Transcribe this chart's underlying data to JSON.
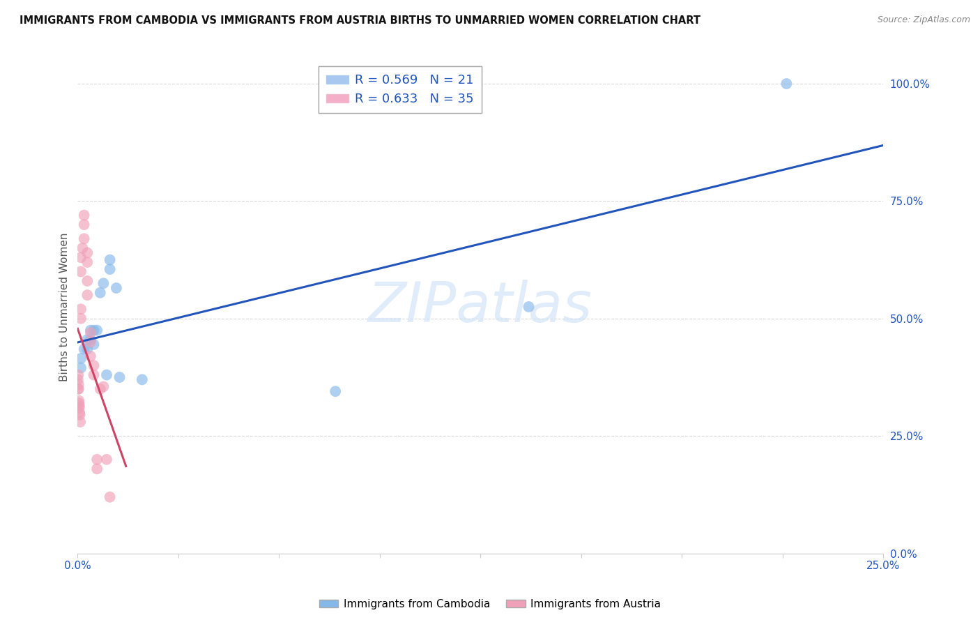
{
  "title": "IMMIGRANTS FROM CAMBODIA VS IMMIGRANTS FROM AUSTRIA BIRTHS TO UNMARRIED WOMEN CORRELATION CHART",
  "source": "Source: ZipAtlas.com",
  "ylabel": "Births to Unmarried Women",
  "legend_entries": [
    {
      "label": "R = 0.569   N = 21",
      "color": "#a8c8f0"
    },
    {
      "label": "R = 0.633   N = 35",
      "color": "#f4aec8"
    }
  ],
  "legend_label_cambodia": "Immigrants from Cambodia",
  "legend_label_austria": "Immigrants from Austria",
  "blue_color": "#85b8e8",
  "pink_color": "#f0a0b8",
  "trend_blue": "#2255bb",
  "trend_pink": "#cc4466",
  "xlim": [
    0.0,
    0.25
  ],
  "ylim": [
    0.0,
    1.05
  ],
  "ytick_vals": [
    0.0,
    0.25,
    0.5,
    0.75,
    1.0
  ],
  "ytick_labels": [
    "0.0%",
    "25.0%",
    "50.0%",
    "75.0%",
    "100.0%"
  ],
  "xtick_labels_show": [
    "0.0%",
    "25.0%"
  ],
  "cambodia_x": [
    0.001,
    0.001,
    0.002,
    0.003,
    0.003,
    0.004,
    0.004,
    0.005,
    0.005,
    0.006,
    0.007,
    0.008,
    0.009,
    0.01,
    0.01,
    0.012,
    0.013,
    0.02,
    0.08,
    0.14,
    0.22
  ],
  "cambodia_y": [
    0.395,
    0.415,
    0.435,
    0.435,
    0.455,
    0.455,
    0.475,
    0.445,
    0.475,
    0.475,
    0.555,
    0.575,
    0.38,
    0.605,
    0.625,
    0.565,
    0.375,
    0.37,
    0.345,
    0.525,
    1.0
  ],
  "austria_x": [
    0.0001,
    0.0001,
    0.0002,
    0.0003,
    0.0003,
    0.0004,
    0.0004,
    0.0005,
    0.0005,
    0.0006,
    0.0007,
    0.0008,
    0.001,
    0.001,
    0.001,
    0.001,
    0.0015,
    0.002,
    0.002,
    0.002,
    0.003,
    0.003,
    0.003,
    0.003,
    0.004,
    0.004,
    0.004,
    0.005,
    0.005,
    0.006,
    0.006,
    0.007,
    0.008,
    0.009,
    0.01
  ],
  "austria_y": [
    0.35,
    0.37,
    0.38,
    0.35,
    0.36,
    0.32,
    0.325,
    0.31,
    0.315,
    0.3,
    0.295,
    0.28,
    0.5,
    0.52,
    0.6,
    0.63,
    0.65,
    0.67,
    0.7,
    0.72,
    0.55,
    0.58,
    0.62,
    0.64,
    0.45,
    0.47,
    0.42,
    0.38,
    0.4,
    0.2,
    0.18,
    0.35,
    0.355,
    0.2,
    0.12
  ],
  "austria_trend_x": [
    0.0,
    0.015
  ],
  "grid_color": "#d8d8d8"
}
